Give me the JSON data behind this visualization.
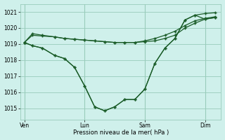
{
  "background_color": "#cff0eb",
  "grid_color": "#99ccbb",
  "line_color": "#1a5c28",
  "xlabel": "Pression niveau de la mer( hPa )",
  "ylim": [
    1014.3,
    1021.5
  ],
  "yticks": [
    1015,
    1016,
    1017,
    1018,
    1019,
    1020,
    1021
  ],
  "xtick_labels": [
    "Ven",
    "Lun",
    "Sam",
    "Dim"
  ],
  "xtick_positions": [
    0,
    3,
    6,
    9
  ],
  "vline_positions": [
    0,
    3,
    6,
    9
  ],
  "series": [
    {
      "x": [
        0,
        0.4,
        0.9,
        1.5,
        2.0,
        2.5,
        3.0,
        3.5,
        4.0,
        4.5,
        5.0,
        5.5,
        6.0,
        6.5,
        7.0,
        7.5,
        8.0,
        8.5,
        9.0,
        9.5
      ],
      "y": [
        1019.1,
        1019.55,
        1019.5,
        1019.45,
        1019.35,
        1019.3,
        1019.25,
        1019.2,
        1019.15,
        1019.1,
        1019.1,
        1019.1,
        1019.15,
        1019.2,
        1019.35,
        1019.55,
        1020.0,
        1020.3,
        1020.55,
        1020.65
      ]
    },
    {
      "x": [
        0,
        0.4,
        0.9,
        1.5,
        2.0,
        2.5,
        3.0,
        3.5,
        4.0,
        4.5,
        5.0,
        5.5,
        6.0,
        6.5,
        7.0,
        7.5,
        8.0,
        8.5,
        9.0,
        9.5
      ],
      "y": [
        1019.1,
        1019.65,
        1019.55,
        1019.45,
        1019.35,
        1019.3,
        1019.25,
        1019.2,
        1019.15,
        1019.1,
        1019.1,
        1019.1,
        1019.2,
        1019.35,
        1019.55,
        1019.8,
        1020.15,
        1020.45,
        1020.6,
        1020.7
      ]
    },
    {
      "x": [
        0,
        0.4,
        0.9,
        1.5,
        2.0,
        2.5,
        3.0,
        3.5,
        4.0,
        4.5,
        5.0,
        5.5,
        6.0,
        6.5,
        7.0,
        7.5,
        8.0,
        8.5,
        9.0,
        9.5
      ],
      "y": [
        1019.1,
        1018.9,
        1018.75,
        1018.3,
        1018.1,
        1017.55,
        1016.4,
        1015.1,
        1014.85,
        1015.1,
        1015.55,
        1015.55,
        1016.2,
        1017.8,
        1018.75,
        1019.35,
        1020.5,
        1020.8,
        1020.9,
        1020.95
      ]
    },
    {
      "x": [
        0,
        0.4,
        0.9,
        1.5,
        2.0,
        2.5,
        3.0,
        3.5,
        4.0,
        4.5,
        5.0,
        5.5,
        6.0,
        6.5,
        7.0,
        7.5,
        8.0,
        8.5,
        9.0,
        9.5
      ],
      "y": [
        1019.1,
        1018.9,
        1018.75,
        1018.3,
        1018.1,
        1017.55,
        1016.4,
        1015.1,
        1014.85,
        1015.1,
        1015.55,
        1015.55,
        1016.2,
        1017.8,
        1018.75,
        1019.35,
        1020.5,
        1020.8,
        1020.55,
        1020.65
      ]
    }
  ]
}
